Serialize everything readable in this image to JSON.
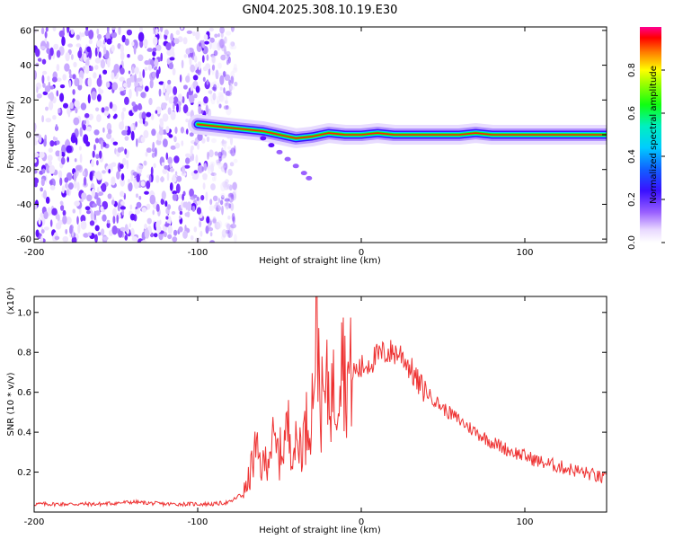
{
  "chart_data": [
    {
      "type": "heatmap",
      "title": "GN04.2025.308.10.19.E30",
      "xlabel": "Height of straight line (km)",
      "ylabel": "Frequency (Hz)",
      "xlim": [
        -200,
        150
      ],
      "ylim": [
        -62,
        62
      ],
      "x_ticks": [
        -200,
        -100,
        0,
        100
      ],
      "x_tick_labels": [
        "-200",
        "-100",
        "0",
        "100"
      ],
      "y_ticks": [
        -60,
        -40,
        -20,
        0,
        20,
        40,
        60
      ],
      "y_tick_labels": [
        "-60",
        "-40",
        "-20",
        "0",
        "20",
        "40",
        "60"
      ],
      "noise_region_x": [
        -200,
        -80
      ],
      "ridge": {
        "description": "main spectral ridge",
        "x": [
          -100,
          -90,
          -80,
          -70,
          -60,
          -50,
          -40,
          -30,
          -20,
          -10,
          0,
          10,
          20,
          40,
          60,
          70,
          80,
          100,
          120,
          150
        ],
        "y": [
          6,
          5,
          4,
          3,
          2,
          0,
          -2,
          -1,
          1,
          0,
          0,
          1,
          0,
          0,
          0,
          1,
          0,
          0,
          0,
          0
        ]
      },
      "branch": {
        "description": "secondary descending branch",
        "x": [
          -60,
          -55,
          -50,
          -45,
          -40,
          -35,
          -32
        ],
        "y": [
          -2,
          -6,
          -10,
          -14,
          -18,
          -22,
          -25
        ]
      },
      "colorbar": {
        "label": "Normalized spectral amplitude",
        "range": [
          0,
          1
        ],
        "ticks": [
          0.0,
          0.2,
          0.4,
          0.6,
          0.8
        ],
        "tick_labels": [
          "0.0",
          "0.2",
          "0.4",
          "0.6",
          "0.8"
        ]
      }
    },
    {
      "type": "line",
      "xlabel": "Height of straight line (km)",
      "ylabel": "SNR (10 * v/v)",
      "y_scale_label": "(x10⁴)",
      "xlim": [
        -200,
        150
      ],
      "ylim": [
        0,
        1.08
      ],
      "x_ticks": [
        -200,
        -100,
        0,
        100
      ],
      "x_tick_labels": [
        "-200",
        "-100",
        "0",
        "100"
      ],
      "y_ticks": [
        0.2,
        0.4,
        0.6,
        0.8,
        1.0
      ],
      "y_tick_labels": [
        "0.2",
        "0.4",
        "0.6",
        "0.8",
        "1.0"
      ],
      "series": [
        {
          "name": "SNR",
          "color": "#ee3333",
          "x": [
            -200,
            -180,
            -160,
            -140,
            -120,
            -100,
            -90,
            -80,
            -75,
            -70,
            -65,
            -60,
            -55,
            -50,
            -45,
            -40,
            -35,
            -30,
            -27,
            -25,
            -20,
            -15,
            -12,
            -10,
            -5,
            0,
            5,
            10,
            15,
            20,
            25,
            30,
            35,
            40,
            50,
            60,
            70,
            80,
            90,
            100,
            110,
            120,
            130,
            140,
            150
          ],
          "values": [
            0.04,
            0.04,
            0.04,
            0.05,
            0.04,
            0.04,
            0.04,
            0.05,
            0.08,
            0.12,
            0.3,
            0.22,
            0.35,
            0.28,
            0.42,
            0.32,
            0.38,
            0.55,
            1.05,
            0.52,
            0.62,
            0.58,
            0.95,
            0.66,
            0.7,
            0.72,
            0.75,
            0.78,
            0.8,
            0.8,
            0.79,
            0.72,
            0.64,
            0.6,
            0.52,
            0.46,
            0.4,
            0.35,
            0.31,
            0.28,
            0.25,
            0.23,
            0.21,
            0.19,
            0.16
          ]
        }
      ]
    }
  ]
}
